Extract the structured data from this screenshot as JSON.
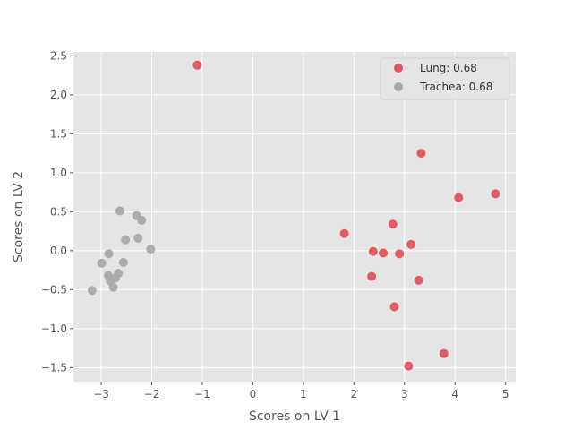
{
  "chart_data": {
    "type": "scatter",
    "xlabel": "Scores on LV 1",
    "ylabel": "Scores on LV 2",
    "xlim": [
      -3.55,
      5.2
    ],
    "ylim": [
      -1.68,
      2.55
    ],
    "xticks": [
      -3,
      -2,
      -1,
      0,
      1,
      2,
      3,
      4,
      5
    ],
    "yticks": [
      -1.5,
      -1.0,
      -0.5,
      0.0,
      0.5,
      1.0,
      1.5,
      2.0,
      2.5
    ],
    "xtick_labels": [
      "−3",
      "−2",
      "−1",
      "0",
      "1",
      "2",
      "3",
      "4",
      "5"
    ],
    "ytick_labels": [
      "−1.5",
      "−1.0",
      "−0.5",
      "0.0",
      "0.5",
      "1.0",
      "1.5",
      "2.0",
      "2.5"
    ],
    "grid": true,
    "legend_position": "top-right",
    "series": [
      {
        "name": "Lung: 0.68",
        "color": "#e2545c",
        "points": [
          [
            -1.1,
            2.38
          ],
          [
            3.33,
            1.25
          ],
          [
            4.07,
            0.68
          ],
          [
            4.8,
            0.73
          ],
          [
            2.77,
            0.34
          ],
          [
            1.81,
            0.22
          ],
          [
            3.13,
            0.08
          ],
          [
            2.38,
            -0.01
          ],
          [
            2.58,
            -0.03
          ],
          [
            2.9,
            -0.04
          ],
          [
            2.35,
            -0.33
          ],
          [
            3.28,
            -0.38
          ],
          [
            2.8,
            -0.72
          ],
          [
            3.78,
            -1.32
          ],
          [
            3.08,
            -1.48
          ]
        ]
      },
      {
        "name": "Trachea: 0.68",
        "color": "#a9a9a9",
        "points": [
          [
            -2.63,
            0.51
          ],
          [
            -2.3,
            0.45
          ],
          [
            -2.2,
            0.39
          ],
          [
            -2.52,
            0.14
          ],
          [
            -2.27,
            0.16
          ],
          [
            -2.02,
            0.02
          ],
          [
            -2.85,
            -0.04
          ],
          [
            -2.99,
            -0.16
          ],
          [
            -2.56,
            -0.15
          ],
          [
            -2.86,
            -0.32
          ],
          [
            -2.66,
            -0.29
          ],
          [
            -2.72,
            -0.35
          ],
          [
            -2.82,
            -0.39
          ],
          [
            -2.76,
            -0.47
          ],
          [
            -3.18,
            -0.51
          ]
        ]
      }
    ]
  }
}
